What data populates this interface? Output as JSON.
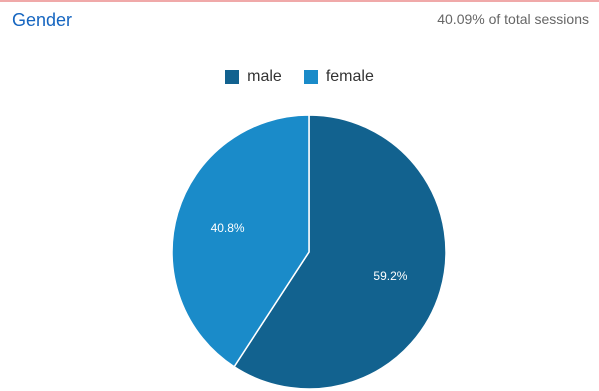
{
  "header": {
    "title": "Gender",
    "subtitle": "40.09% of total sessions"
  },
  "colors": {
    "male": "#12628f",
    "female": "#1a8bc9"
  },
  "chart_data": {
    "type": "pie",
    "title": "Gender",
    "legend_position": "top-center",
    "categories": [
      "male",
      "female"
    ],
    "values": [
      59.2,
      40.8
    ],
    "labels": [
      "59.2%",
      "40.8%"
    ]
  }
}
